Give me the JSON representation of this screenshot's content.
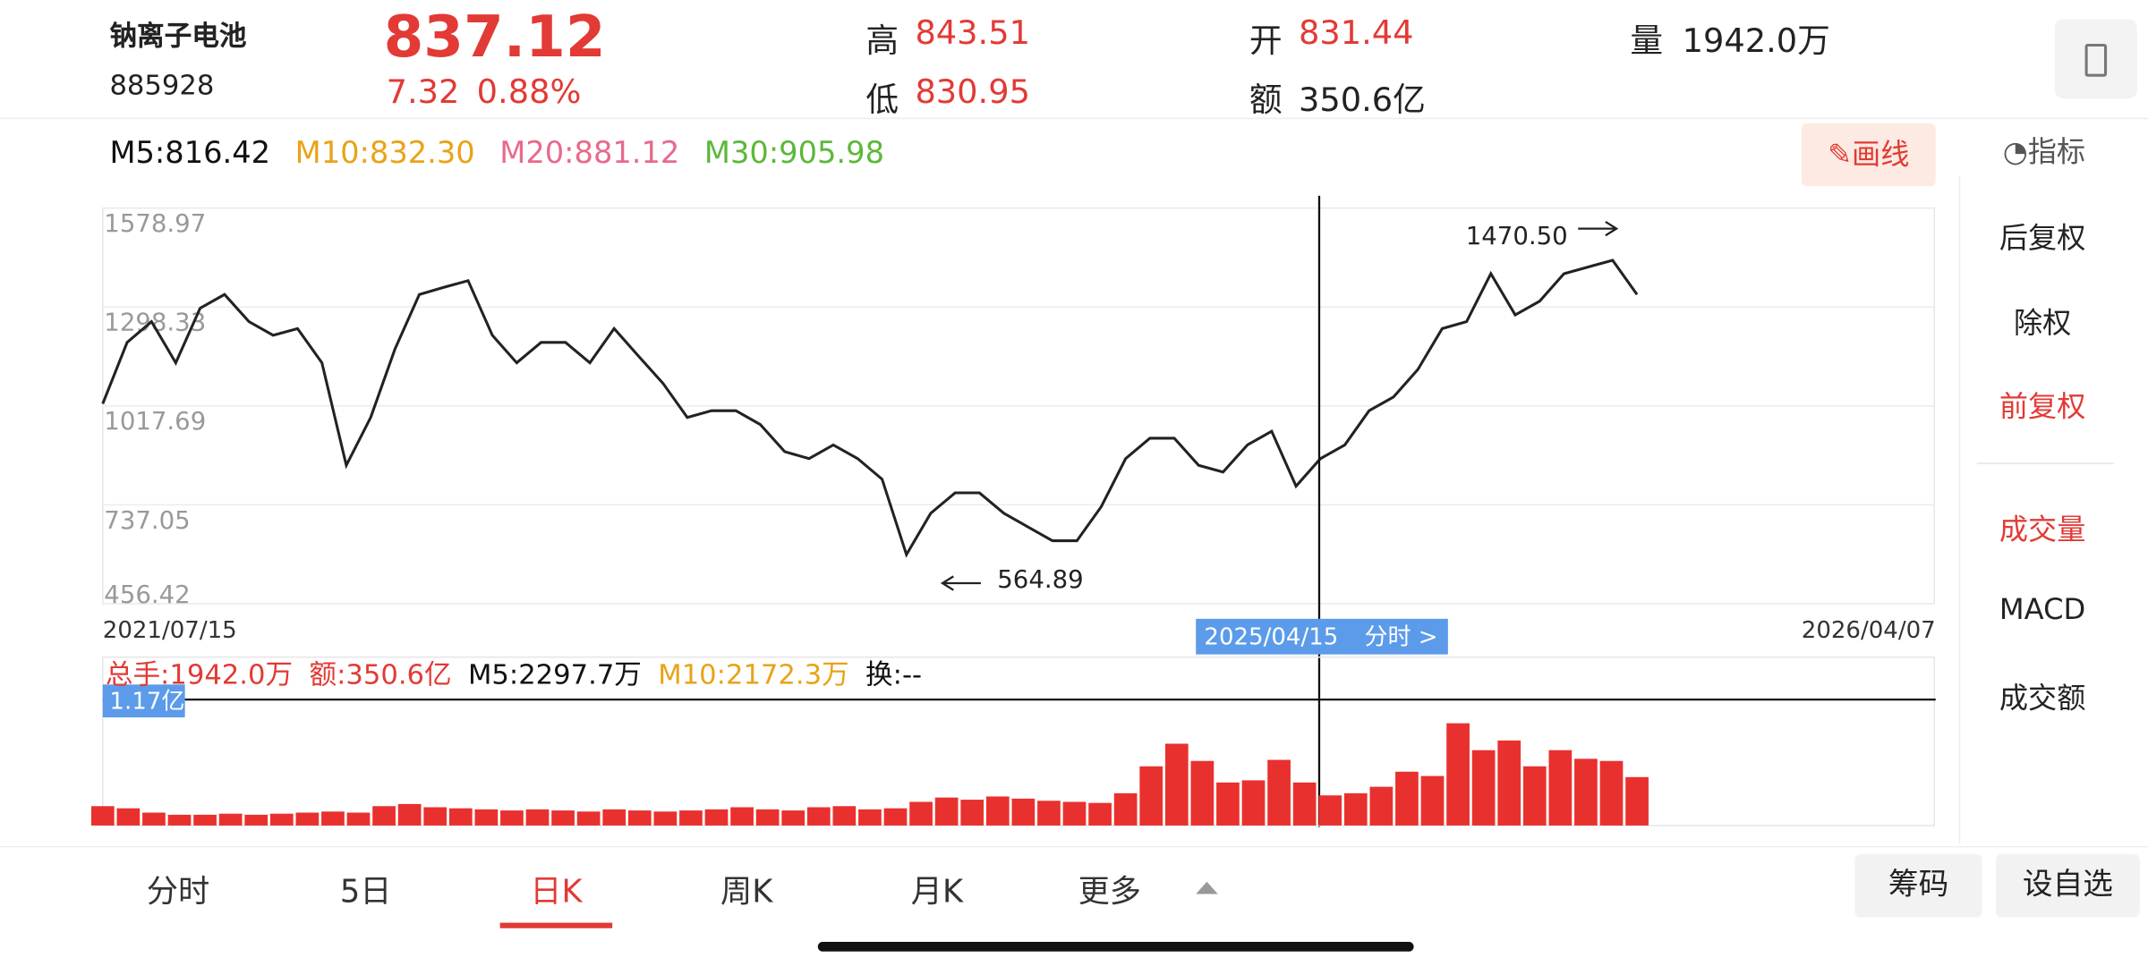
{
  "header": {
    "name": "钠离子电池",
    "code": "885928",
    "price": "837.12",
    "change": "7.32",
    "change_pct": "0.88%",
    "high_label": "高",
    "high": "843.51",
    "low_label": "低",
    "low": "830.95",
    "open_label": "开",
    "open": "831.44",
    "amount_label": "额",
    "amount": "350.6亿",
    "volume_label": "量",
    "volume": "1942.0万"
  },
  "ma_legend": [
    {
      "text": "M5:816.42",
      "color": "#111111"
    },
    {
      "text": "M10:832.30",
      "color": "#e8a317"
    },
    {
      "text": "M20:881.12",
      "color": "#e86a8a"
    },
    {
      "text": "M30:905.98",
      "color": "#5cb83a"
    }
  ],
  "draw_button": "画线",
  "indicator_button": "指标",
  "side_menu": [
    {
      "text": "后复权",
      "color": "#222222"
    },
    {
      "text": "除权",
      "color": "#222222"
    },
    {
      "text": "前复权",
      "color": "#e23a35"
    },
    {
      "text": "成交量",
      "color": "#e23a35"
    },
    {
      "text": "MACD",
      "color": "#222222"
    },
    {
      "text": "成交额",
      "color": "#222222"
    }
  ],
  "tabs": [
    {
      "text": "分时",
      "active": false
    },
    {
      "text": "5日",
      "active": false
    },
    {
      "text": "日K",
      "active": true
    },
    {
      "text": "周K",
      "active": false
    },
    {
      "text": "月K",
      "active": false
    },
    {
      "text": "更多",
      "active": false
    }
  ],
  "actions": [
    "筹码",
    "设自选"
  ],
  "chart_data": [
    {
      "type": "line",
      "x_labels": [
        "2021/07/15",
        "2026/04/07"
      ],
      "ylim": [
        456.42,
        1578.97
      ],
      "yticks": [
        456.42,
        737.05,
        1017.69,
        1298.33,
        1578.97
      ],
      "grid": true,
      "series": [
        {
          "color": "#222222",
          "values": [
            1024,
            1198,
            1257,
            1140,
            1295,
            1334,
            1257,
            1218,
            1237,
            1140,
            849,
            985,
            1179,
            1334,
            1354,
            1373,
            1218,
            1140,
            1198,
            1198,
            1140,
            1237,
            1159,
            1082,
            985,
            1004,
            1004,
            965,
            888,
            868,
            907,
            868,
            810,
            596,
            713,
            771,
            771,
            713,
            674,
            635,
            635,
            732,
            868,
            926,
            926,
            849,
            830,
            907,
            946,
            790,
            868,
            907,
            1004,
            1043,
            1121,
            1237,
            1257,
            1393,
            1276,
            1315,
            1393,
            1412,
            1431,
            1334
          ]
        }
      ],
      "annotations": [
        "1470.50",
        "564.89"
      ],
      "crosshair": {
        "label": "2025/04/15",
        "link": "分时 >"
      }
    },
    {
      "type": "bar",
      "legend": [
        {
          "text": "总手:1942.0万",
          "color": "#e23a35"
        },
        {
          "text": "额:350.6亿",
          "color": "#e23a35"
        },
        {
          "text": "M5:2297.7万",
          "color": "#111111"
        },
        {
          "text": "M10:2172.3万",
          "color": "#e8a317"
        },
        {
          "text": "换:--",
          "color": "#111111"
        }
      ],
      "ylim": [
        0,
        11700
      ],
      "yticks": [
        {
          "value": 11700,
          "label": "1.17亿"
        }
      ],
      "color": "#e8312f",
      "values": [
        1800,
        1600,
        1200,
        1000,
        1000,
        1100,
        1000,
        1100,
        1200,
        1300,
        1200,
        1800,
        2000,
        1700,
        1600,
        1500,
        1400,
        1500,
        1400,
        1300,
        1500,
        1400,
        1300,
        1400,
        1500,
        1700,
        1500,
        1400,
        1700,
        1800,
        1500,
        1600,
        2200,
        2600,
        2400,
        2700,
        2500,
        2300,
        2200,
        2100,
        3000,
        5500,
        7600,
        6000,
        4000,
        4200,
        6100,
        4000,
        2800,
        3000,
        3600,
        5000,
        4600,
        9500,
        7000,
        7900,
        5500,
        7000,
        6200,
        6000,
        4500
      ]
    }
  ]
}
